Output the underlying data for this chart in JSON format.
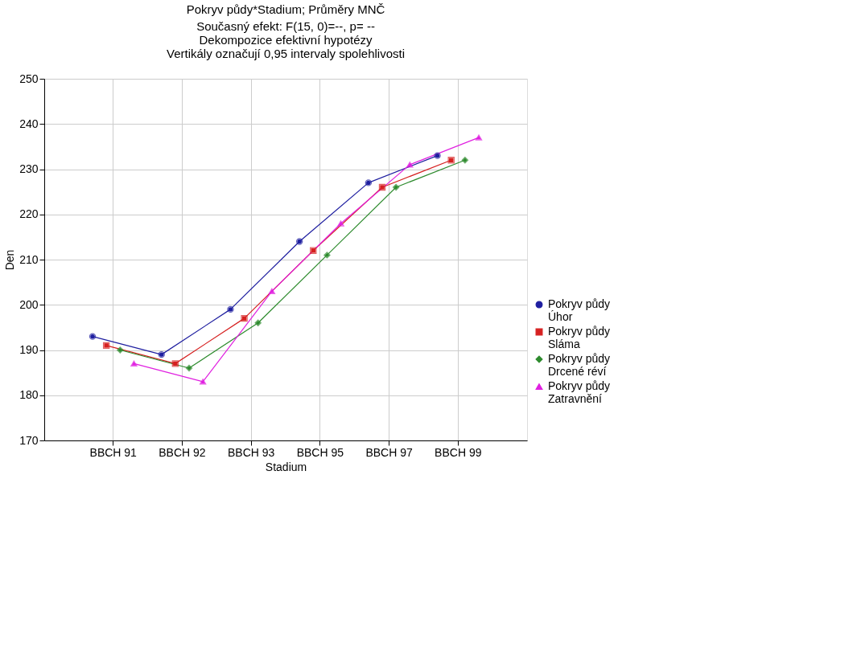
{
  "chart_data": {
    "type": "line",
    "title": "Pokryv půdy*Stadium; Průměry MNČ",
    "subtitle": [
      "Současný efekt: F(15, 0)=--, p=  --",
      "Dekompozice efektivní hypotézy",
      "Vertikály označují 0,95 intervaly spolehlivosti"
    ],
    "xlabel": "Stadium",
    "ylabel": "Den",
    "categories": [
      "BBCH 91",
      "BBCH 92",
      "BBCH 93",
      "BBCH 95",
      "BBCH 97",
      "BBCH 99"
    ],
    "series": [
      {
        "name": "Pokryv půdy\nÚhor",
        "color": "#1f1fa0",
        "marker": "circle",
        "values": [
          193,
          189,
          199,
          214,
          227,
          233
        ]
      },
      {
        "name": "Pokryv půdy\nSláma",
        "color": "#d62020",
        "marker": "square",
        "values": [
          191,
          187,
          197,
          212,
          226,
          232
        ]
      },
      {
        "name": "Pokryv půdy\nDrcené réví",
        "color": "#2e8b2e",
        "marker": "diamond",
        "values": [
          190,
          186,
          196,
          211,
          226,
          232
        ]
      },
      {
        "name": "Pokryv půdy\nZatravnění",
        "color": "#e020e0",
        "marker": "triangle",
        "values": [
          187,
          183,
          203,
          218,
          231,
          237
        ]
      }
    ],
    "ylim": [
      170,
      250
    ],
    "yticks": [
      170,
      180,
      190,
      200,
      210,
      220,
      230,
      240,
      250
    ],
    "grid": true,
    "legend": "bottom right",
    "line_style": "solid"
  }
}
